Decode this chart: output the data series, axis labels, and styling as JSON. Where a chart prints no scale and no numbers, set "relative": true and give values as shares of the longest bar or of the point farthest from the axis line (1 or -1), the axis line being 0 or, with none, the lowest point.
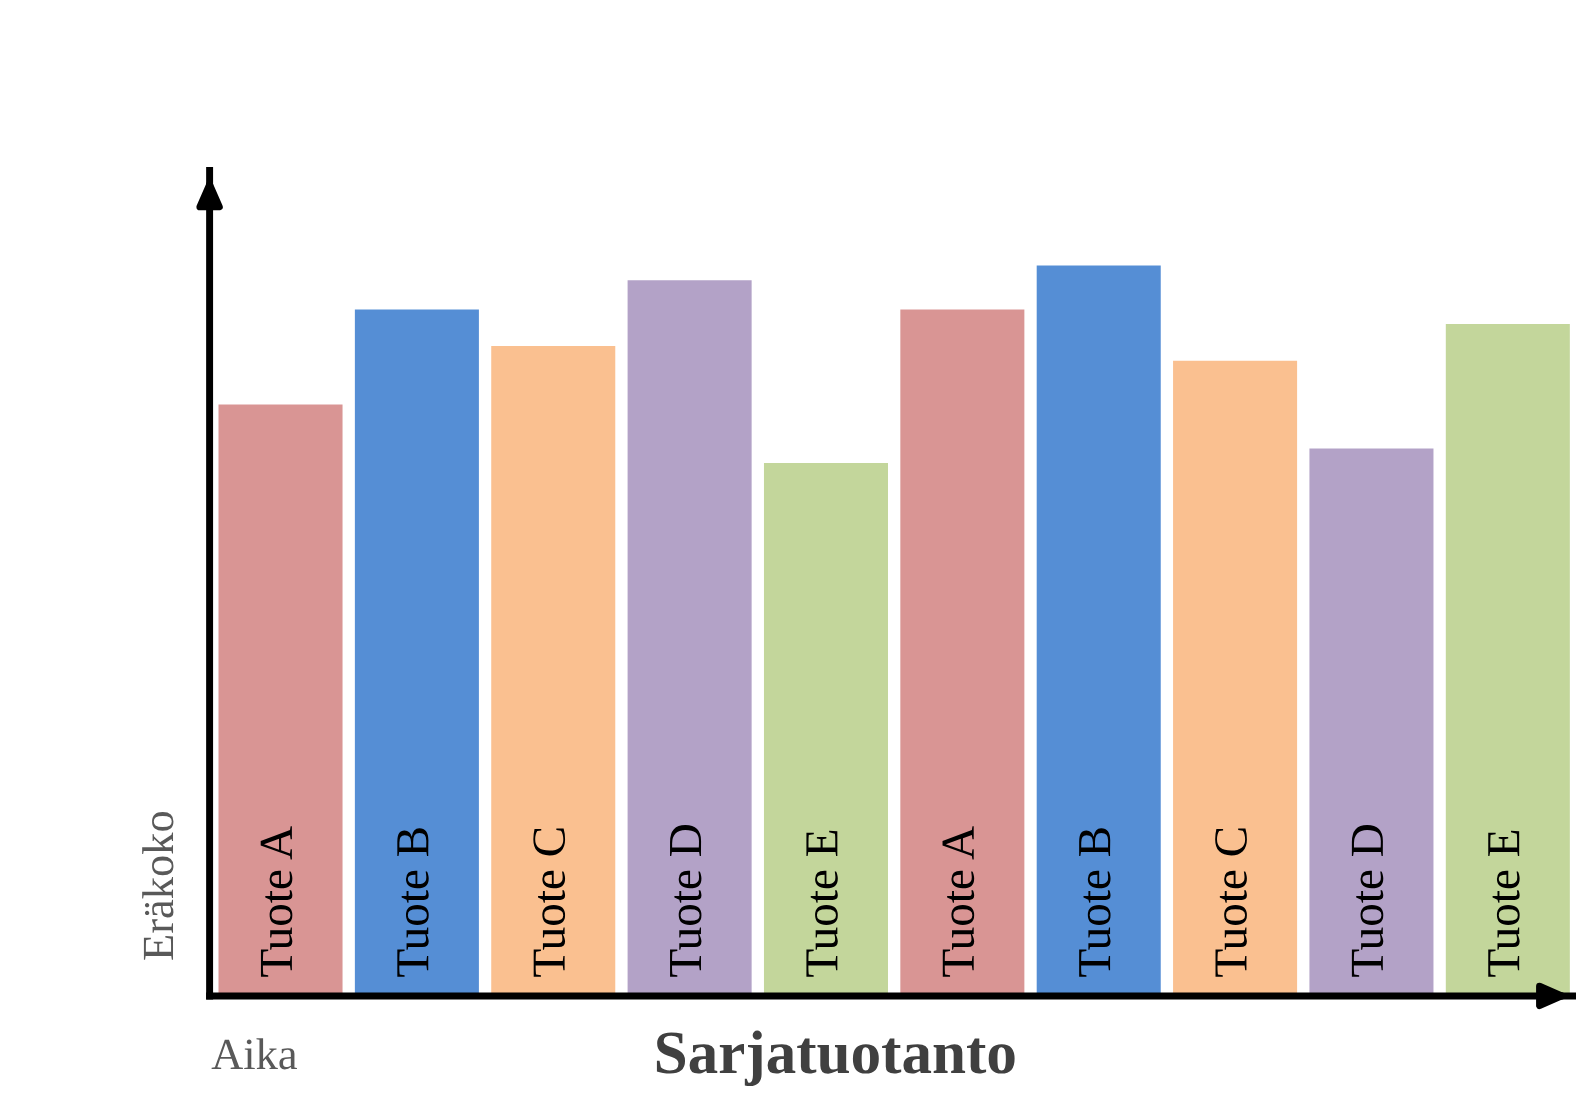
{
  "chart_data": {
    "type": "bar",
    "relative": true,
    "title": "Sarjatuotanto",
    "xlabel": "Aika",
    "ylabel": "Eräkoko",
    "categories": [
      "Tuote A",
      "Tuote B",
      "Tuote C",
      "Tuote D",
      "Tuote E",
      "Tuote A",
      "Tuote B",
      "Tuote C",
      "Tuote D",
      "Tuote E"
    ],
    "values": [
      0.81,
      0.94,
      0.89,
      0.98,
      0.73,
      0.94,
      1,
      0.87,
      0.75,
      0.92
    ],
    "colors": [
      "#d99594",
      "#558ed5",
      "#fac090",
      "#b3a2c7",
      "#c3d69b",
      "#d99594",
      "#558ed5",
      "#fac090",
      "#b3a2c7",
      "#c3d69b"
    ],
    "tick_labels": false,
    "grid": false,
    "legend": false
  }
}
